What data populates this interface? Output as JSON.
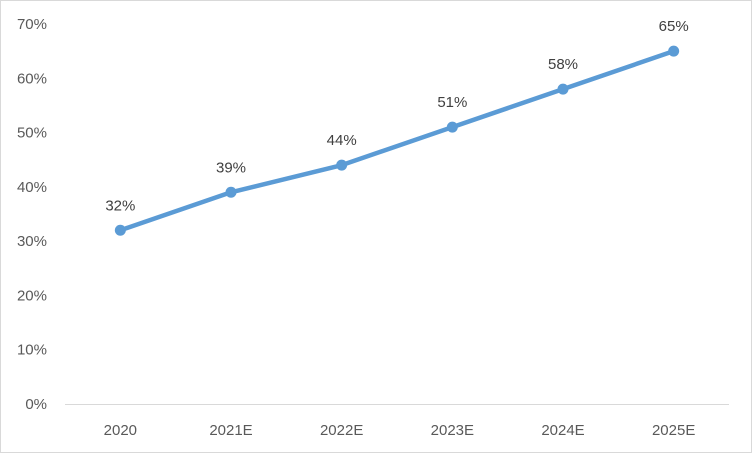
{
  "chart_data": {
    "type": "line",
    "categories": [
      "2020",
      "2021E",
      "2022E",
      "2023E",
      "2024E",
      "2025E"
    ],
    "series": [
      {
        "values": [
          32,
          39,
          44,
          51,
          58,
          65
        ],
        "data_labels": [
          "32%",
          "39%",
          "44%",
          "51%",
          "58%",
          "65%"
        ],
        "color": "#5b9bd5"
      }
    ],
    "y_ticks": [
      "0%",
      "10%",
      "20%",
      "30%",
      "40%",
      "50%",
      "60%",
      "70%"
    ],
    "ylim": [
      0,
      70
    ],
    "y_unit": "%",
    "grid": false,
    "legend": "none"
  }
}
